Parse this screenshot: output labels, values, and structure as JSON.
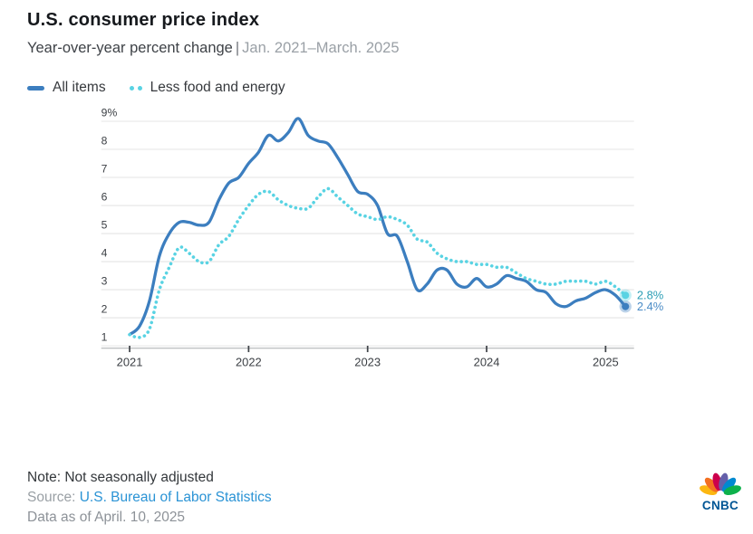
{
  "header": {
    "title": "U.S. consumer price index",
    "subtitle_main": "Year-over-year percent change",
    "subtitle_sep": "|",
    "subtitle_period": "Jan. 2021–March. 2025"
  },
  "legend": {
    "items": [
      {
        "label": "All items",
        "style": "solid",
        "color": "#3C7EBF"
      },
      {
        "label": "Less food and energy",
        "style": "dotted",
        "color": "#59D3E3"
      }
    ]
  },
  "chart_data": {
    "type": "line",
    "title": "U.S. consumer price index",
    "subtitle": "Year-over-year percent change | Jan. 2021–March. 2025",
    "x_unit": "month",
    "x_start": "2021-01",
    "x_end": "2025-03",
    "grid": true,
    "legend_position": "top-left",
    "ylim": [
      1,
      9.2
    ],
    "y_tick_values": [
      9,
      8,
      7,
      6,
      5,
      4,
      3,
      2,
      1
    ],
    "y_tick_labels": [
      "9%",
      "8",
      "7",
      "6",
      "5",
      "4",
      "3",
      "2",
      "1"
    ],
    "x_tick_positions": [
      0,
      12,
      24,
      36,
      48
    ],
    "x_tick_labels": [
      "2021",
      "2022",
      "2023",
      "2024",
      "2025"
    ],
    "series": [
      {
        "name": "All items",
        "style": "solid",
        "color": "#3C7EBF",
        "end_label": "2.4%",
        "end_label_color": "#4A8BC6",
        "values": [
          1.4,
          1.7,
          2.6,
          4.2,
          5.0,
          5.4,
          5.4,
          5.3,
          5.4,
          6.2,
          6.8,
          7.0,
          7.5,
          7.9,
          8.5,
          8.3,
          8.6,
          9.1,
          8.5,
          8.3,
          8.2,
          7.7,
          7.1,
          6.5,
          6.4,
          6.0,
          5.0,
          4.9,
          4.0,
          3.0,
          3.2,
          3.7,
          3.7,
          3.2,
          3.1,
          3.4,
          3.1,
          3.2,
          3.5,
          3.4,
          3.3,
          3.0,
          2.9,
          2.5,
          2.4,
          2.6,
          2.7,
          2.9,
          3.0,
          2.8,
          2.4
        ]
      },
      {
        "name": "Less food and energy",
        "style": "dotted",
        "color": "#59D3E3",
        "end_label": "2.8%",
        "end_label_color": "#2C9EB5",
        "values": [
          1.4,
          1.3,
          1.6,
          3.0,
          3.8,
          4.5,
          4.3,
          4.0,
          4.0,
          4.6,
          4.9,
          5.5,
          6.0,
          6.4,
          6.5,
          6.2,
          6.0,
          5.9,
          5.9,
          6.3,
          6.6,
          6.3,
          6.0,
          5.7,
          5.6,
          5.5,
          5.6,
          5.5,
          5.3,
          4.8,
          4.7,
          4.3,
          4.1,
          4.0,
          4.0,
          3.9,
          3.9,
          3.8,
          3.8,
          3.6,
          3.4,
          3.3,
          3.2,
          3.2,
          3.3,
          3.3,
          3.3,
          3.2,
          3.3,
          3.1,
          2.8
        ]
      }
    ]
  },
  "footer": {
    "note": "Note: Not seasonally adjusted",
    "source_label": "Source:",
    "source_link": "U.S. Bureau of Labor Statistics",
    "data_as_of": "Data as of April. 10, 2025"
  },
  "branding": {
    "logo_text": "CNBC",
    "logo_text_color": "#005594",
    "feather_colors": [
      "#fcb711",
      "#f37021",
      "#cc004c",
      "#6460aa",
      "#0089d0",
      "#0db14b"
    ]
  }
}
